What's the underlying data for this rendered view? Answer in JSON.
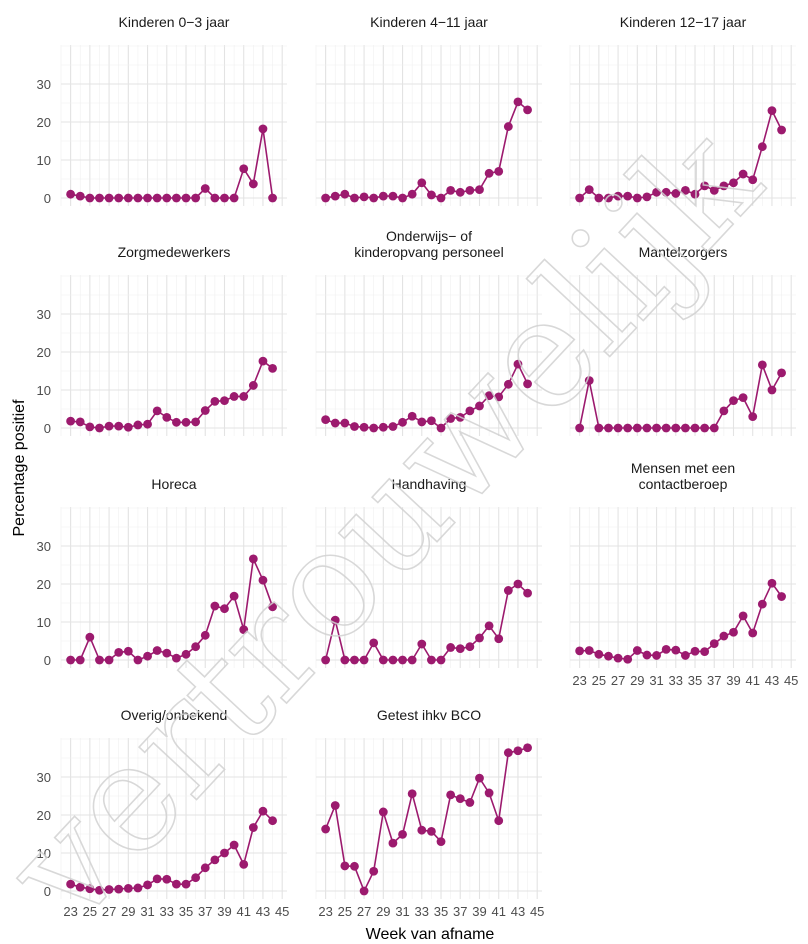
{
  "figure": {
    "xlabel": "Week van afname",
    "ylabel": "Percentage positief",
    "watermark_text": "vertrouwelijk"
  },
  "chart_data": {
    "type": "line",
    "facets": true,
    "x_ticks": [
      23,
      25,
      27,
      29,
      31,
      33,
      35,
      37,
      39,
      41,
      43,
      45
    ],
    "y_ticks": [
      0,
      10,
      20,
      30
    ],
    "xlim": [
      22,
      45.5
    ],
    "ylim": [
      -1.5,
      40
    ],
    "grid": true,
    "series_color": "#9c1a6e",
    "panels": [
      {
        "title": "Kinderen 0−3 jaar",
        "x": [
          23,
          24,
          25,
          26,
          27,
          28,
          29,
          30,
          31,
          32,
          33,
          34,
          35,
          36,
          37,
          38,
          39,
          40,
          41,
          42,
          43,
          44
        ],
        "values": [
          1,
          0.5,
          0,
          0,
          0,
          0,
          0,
          0,
          0,
          0,
          0,
          0,
          0,
          0,
          2.5,
          0,
          0,
          0,
          7.7,
          3.7,
          18.2,
          0
        ]
      },
      {
        "title": "Kinderen 4−11 jaar",
        "x": [
          23,
          24,
          25,
          26,
          27,
          28,
          29,
          30,
          31,
          32,
          33,
          34,
          35,
          36,
          37,
          38,
          39,
          40,
          41,
          42,
          43,
          44
        ],
        "values": [
          0,
          0.5,
          1,
          0,
          0.3,
          0,
          0.5,
          0.5,
          0,
          1,
          4,
          0.8,
          0,
          2,
          1.5,
          2,
          2.2,
          6.5,
          7,
          18.8,
          25.3,
          23.2
        ]
      },
      {
        "title": "Kinderen 12−17 jaar",
        "x": [
          23,
          24,
          25,
          26,
          27,
          28,
          29,
          30,
          31,
          32,
          33,
          34,
          35,
          36,
          37,
          38,
          39,
          40,
          41,
          42,
          43,
          44
        ],
        "values": [
          0,
          2.2,
          0,
          0,
          0.5,
          0.5,
          0,
          0.3,
          1.5,
          1.5,
          1.2,
          2,
          1,
          3.2,
          2,
          3.2,
          4,
          6.3,
          4.8,
          13.5,
          23,
          17.9
        ]
      },
      {
        "title": "Zorgmedewerkers",
        "x": [
          23,
          24,
          25,
          26,
          27,
          28,
          29,
          30,
          31,
          32,
          33,
          34,
          35,
          36,
          37,
          38,
          39,
          40,
          41,
          42,
          43,
          44
        ],
        "values": [
          1.8,
          1.6,
          0.3,
          0,
          0.5,
          0.5,
          0.2,
          0.8,
          1,
          4.5,
          2.8,
          1.5,
          1.5,
          1.6,
          4.6,
          7,
          7.2,
          8.3,
          8.3,
          11.2,
          17.6,
          15.7
        ]
      },
      {
        "title_lines": [
          "Onderwijs− of",
          "kinderopvang personeel"
        ],
        "x": [
          23,
          24,
          25,
          26,
          27,
          28,
          29,
          30,
          31,
          32,
          33,
          34,
          35,
          36,
          37,
          38,
          39,
          40,
          41,
          42,
          43,
          44
        ],
        "values": [
          2.2,
          1.3,
          1.3,
          0.4,
          0.2,
          0,
          0.2,
          0.4,
          1.5,
          3.1,
          1.6,
          1.9,
          0,
          2.5,
          2.8,
          4.5,
          5.8,
          8.5,
          8.2,
          11.5,
          16.8,
          11.6
        ]
      },
      {
        "title": "Mantelzorgers",
        "x": [
          23,
          24,
          25,
          26,
          27,
          28,
          29,
          30,
          31,
          32,
          33,
          34,
          35,
          36,
          37,
          38,
          39,
          40,
          41,
          42,
          43,
          44
        ],
        "values": [
          0,
          12.5,
          0,
          0,
          0,
          0,
          0,
          0,
          0,
          0,
          0,
          0,
          0,
          0,
          0,
          4.5,
          7.2,
          8,
          3,
          16.6,
          10,
          14.5
        ]
      },
      {
        "title": "Horeca",
        "x": [
          23,
          24,
          25,
          26,
          27,
          28,
          29,
          30,
          31,
          32,
          33,
          34,
          35,
          36,
          37,
          38,
          39,
          40,
          41,
          42,
          43,
          44
        ],
        "values": [
          0,
          0,
          6,
          0,
          0,
          2,
          2.3,
          0,
          1,
          2.5,
          1.8,
          0.5,
          1.5,
          3.5,
          6.5,
          14.2,
          13.5,
          16.8,
          8,
          26.6,
          21,
          14
        ]
      },
      {
        "title": "Handhaving",
        "x": [
          23,
          24,
          25,
          26,
          27,
          28,
          29,
          30,
          31,
          32,
          33,
          34,
          35,
          36,
          37,
          38,
          39,
          40,
          41,
          42,
          43,
          44
        ],
        "values": [
          0,
          10.5,
          0,
          0,
          0,
          4.5,
          0,
          0,
          0,
          0,
          4.2,
          0,
          0,
          3.3,
          3,
          3.5,
          5.8,
          9,
          5.6,
          18.3,
          20,
          17.6
        ]
      },
      {
        "title_lines": [
          "Mensen met een",
          "contactberoep"
        ],
        "x": [
          23,
          24,
          25,
          26,
          27,
          28,
          29,
          30,
          31,
          32,
          33,
          34,
          35,
          36,
          37,
          38,
          39,
          40,
          41,
          42,
          43,
          44
        ],
        "values": [
          2.4,
          2.5,
          1.5,
          1,
          0.5,
          0.2,
          2.5,
          1.3,
          1.2,
          2.8,
          2.6,
          1.2,
          2.3,
          2.2,
          4.3,
          6.3,
          7.3,
          11.6,
          7.1,
          14.7,
          20.2,
          16.7
        ]
      },
      {
        "title": "Overig/onbekend",
        "x": [
          23,
          24,
          25,
          26,
          27,
          28,
          29,
          30,
          31,
          32,
          33,
          34,
          35,
          36,
          37,
          38,
          39,
          40,
          41,
          42,
          43,
          44
        ],
        "values": [
          1.8,
          1,
          0.6,
          0.2,
          0.4,
          0.5,
          0.7,
          0.8,
          1.6,
          3.2,
          3.1,
          1.8,
          1.8,
          3.5,
          6.1,
          8.2,
          10,
          12.1,
          7,
          16.7,
          21,
          18.5
        ]
      },
      {
        "title": "Getest ihkv BCO",
        "x": [
          23,
          24,
          25,
          26,
          27,
          28,
          29,
          30,
          31,
          32,
          33,
          34,
          35,
          36,
          37,
          38,
          39,
          40,
          41,
          42,
          43,
          44
        ],
        "values": [
          16.3,
          22.5,
          6.6,
          6.5,
          0,
          5.2,
          20.8,
          12.6,
          14.9,
          25.6,
          16,
          15.7,
          13,
          25.3,
          24.3,
          23.3,
          29.7,
          25.8,
          18.5,
          36.4,
          36.9,
          37.7
        ]
      }
    ]
  }
}
